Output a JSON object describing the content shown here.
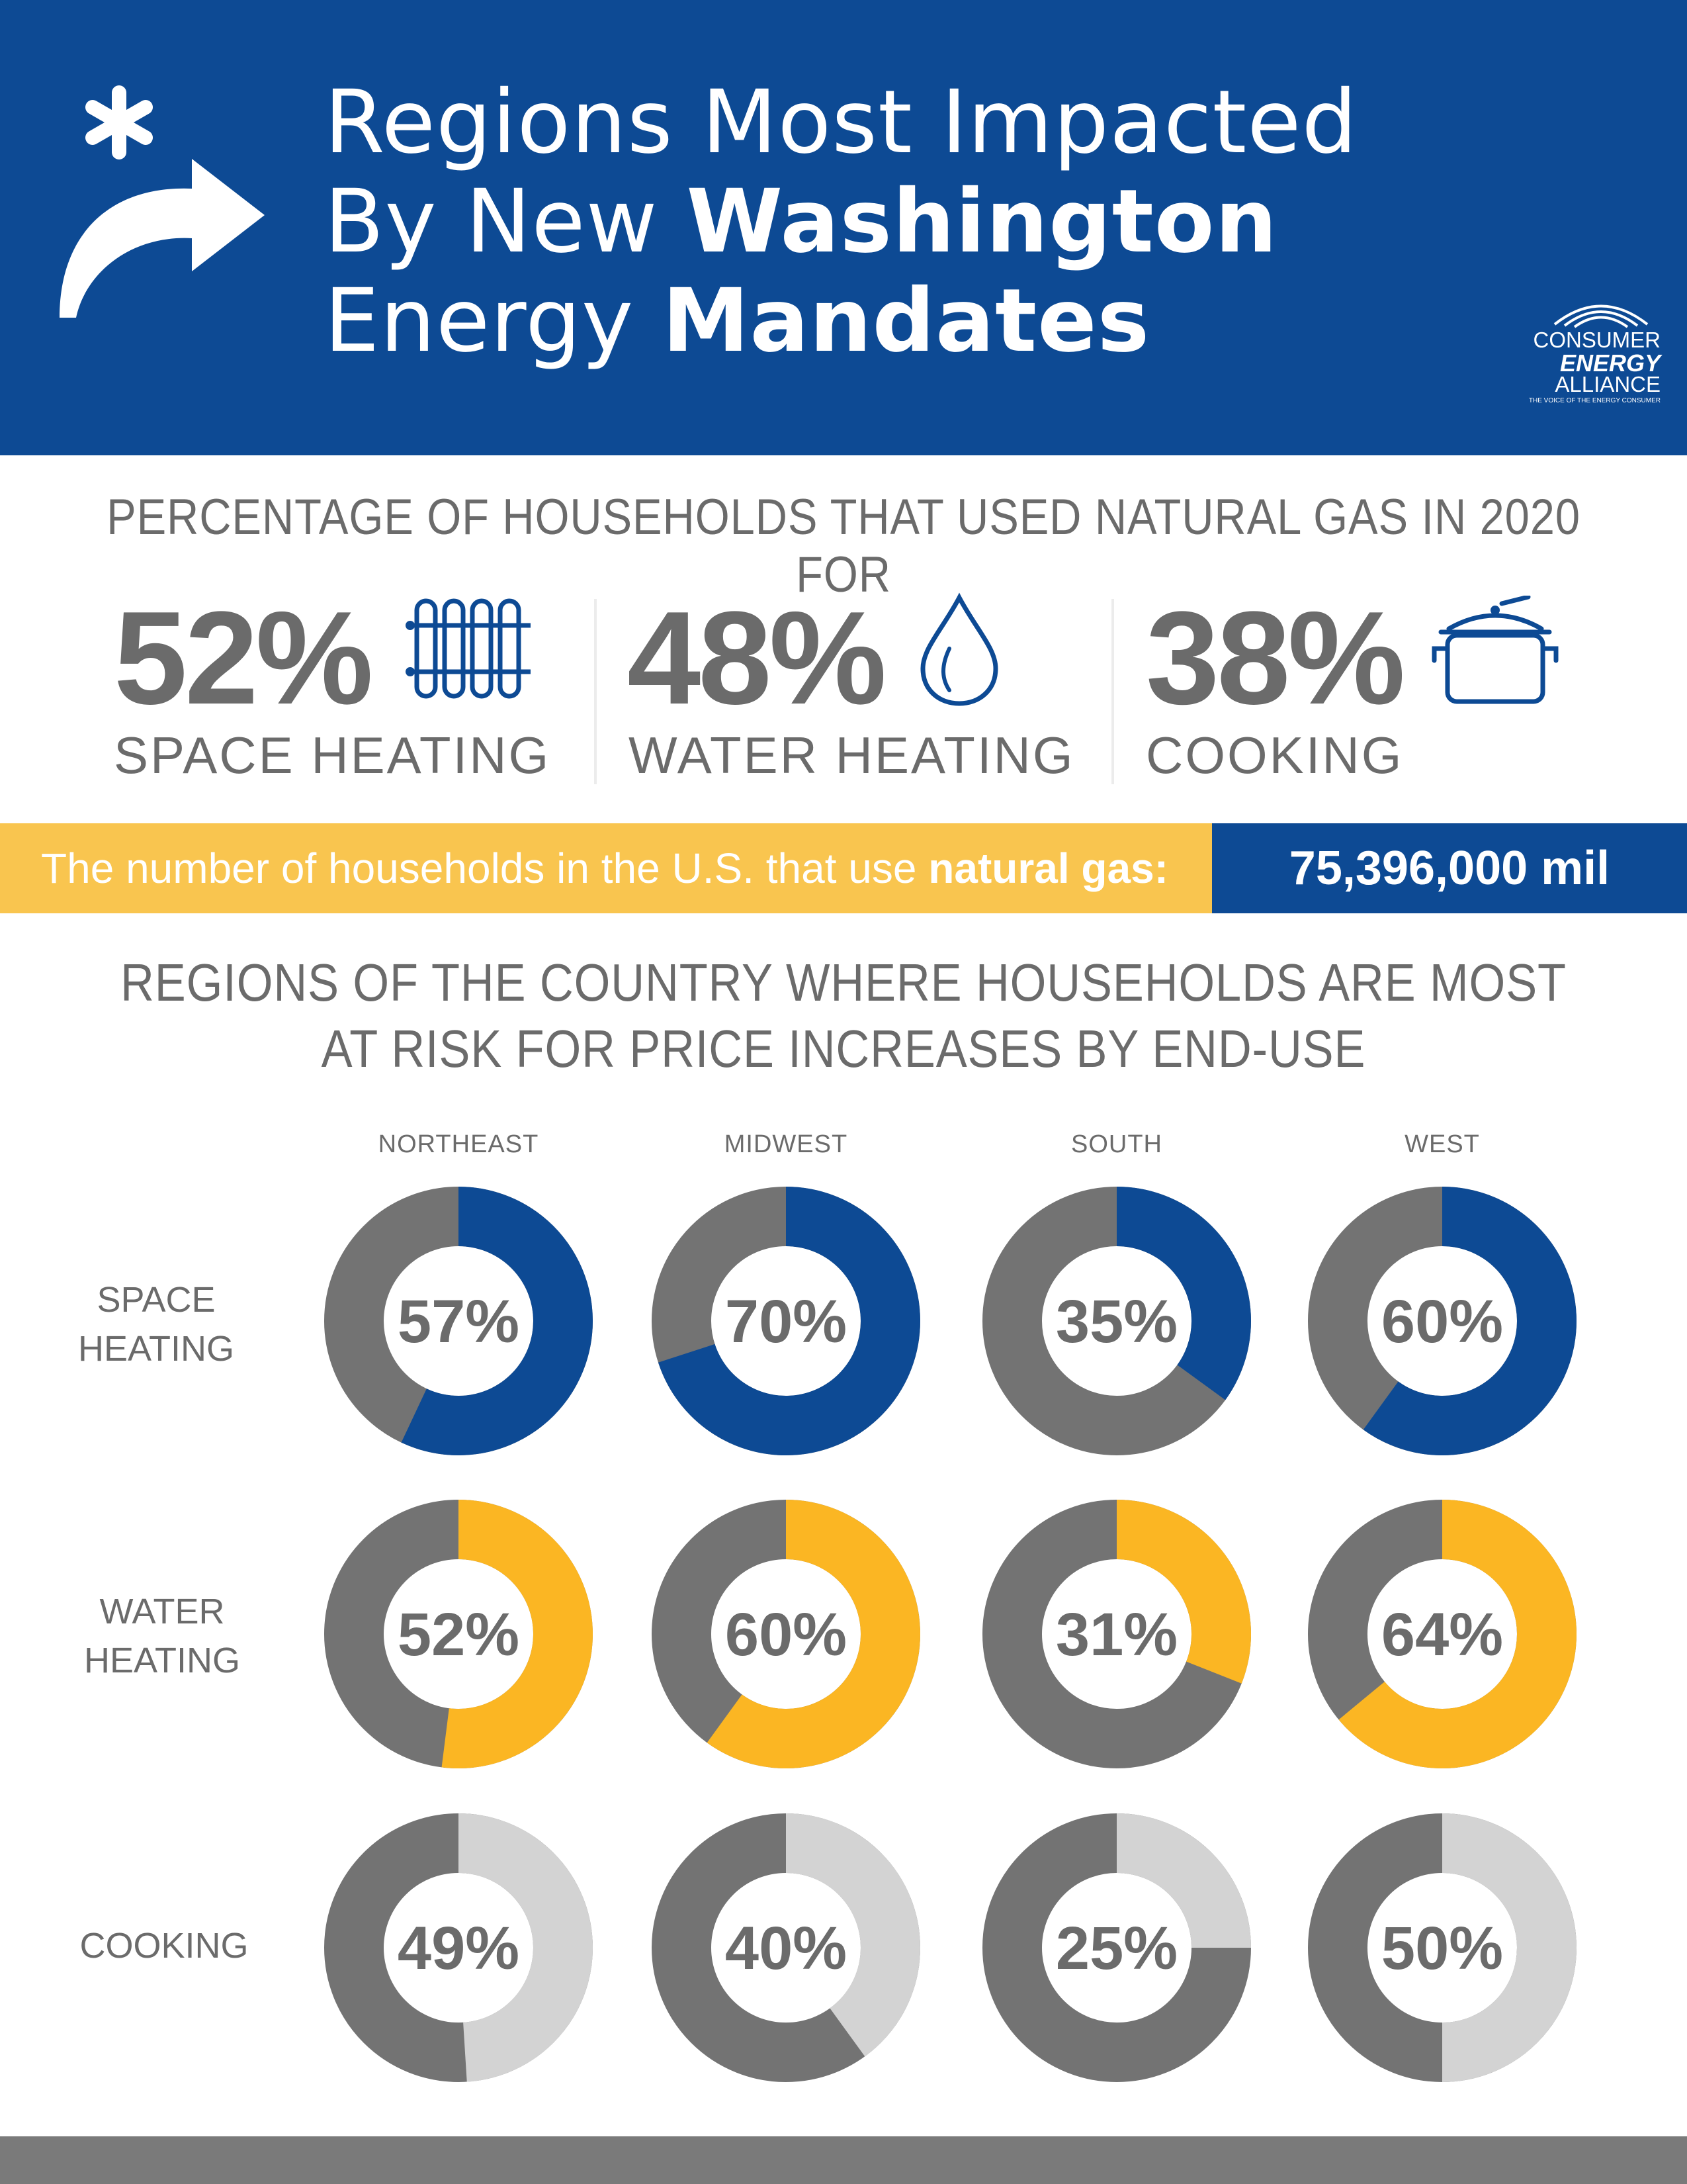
{
  "header": {
    "title_line1": "Regions Most Impacted",
    "title_line2_regular": "By New ",
    "title_line2_bold": "Washington",
    "title_line3_regular": "Energy ",
    "title_line3_bold": "Mandates",
    "icon": "asterisk-arrow-icon",
    "logo": {
      "line1": "CONSUMER",
      "line2": "ENERGY",
      "line3": "ALLIANCE",
      "tagline": "THE VOICE OF THE ENERGY CONSUMER"
    }
  },
  "usage": {
    "title": "PERCENTAGE OF HOUSEHOLDS THAT USED NATURAL GAS IN 2020 FOR",
    "stats": [
      {
        "value": "52%",
        "label": "SPACE HEATING",
        "icon": "radiator-icon"
      },
      {
        "value": "48%",
        "label": "WATER HEATING",
        "icon": "water-drop-icon"
      },
      {
        "value": "38%",
        "label": "COOKING",
        "icon": "cooking-pot-icon"
      }
    ]
  },
  "banner": {
    "text_regular": "The number of households in the U.S. that use ",
    "text_bold": "natural gas:",
    "value": "75,396,000 mil"
  },
  "regions_section": {
    "title_line1": "REGIONS OF THE COUNTRY WHERE HOUSEHOLDS ARE MOST",
    "title_line2": "AT RISK FOR PRICE INCREASES BY END-USE"
  },
  "colors": {
    "brand_blue": "#0d4a94",
    "accent_yellow": "#fbb623",
    "banner_yellow": "#f9c54f",
    "donut_gray": "#737373",
    "light_gray": "#d3d3d3",
    "text_gray": "#6b6b6b"
  },
  "chart_data": {
    "type": "donut-grid",
    "title": "REGIONS OF THE COUNTRY WHERE HOUSEHOLDS ARE MOST AT RISK FOR PRICE INCREASES BY END-USE",
    "categories": [
      "NORTHEAST",
      "MIDWEST",
      "SOUTH",
      "WEST"
    ],
    "series": [
      {
        "name": "SPACE HEATING",
        "label_lines": [
          "SPACE",
          "HEATING"
        ],
        "values": [
          57,
          70,
          35,
          60
        ],
        "color": "#0d4a94"
      },
      {
        "name": "WATER HEATING",
        "label_lines": [
          "WATER",
          "HEATING"
        ],
        "values": [
          52,
          60,
          31,
          64
        ],
        "color": "#fbb623"
      },
      {
        "name": "COOKING",
        "label_lines": [
          "COOKING"
        ],
        "values": [
          49,
          40,
          25,
          50
        ],
        "color": "#d3d3d3"
      }
    ],
    "value_suffix": "%",
    "remainder_color": "#737373"
  }
}
